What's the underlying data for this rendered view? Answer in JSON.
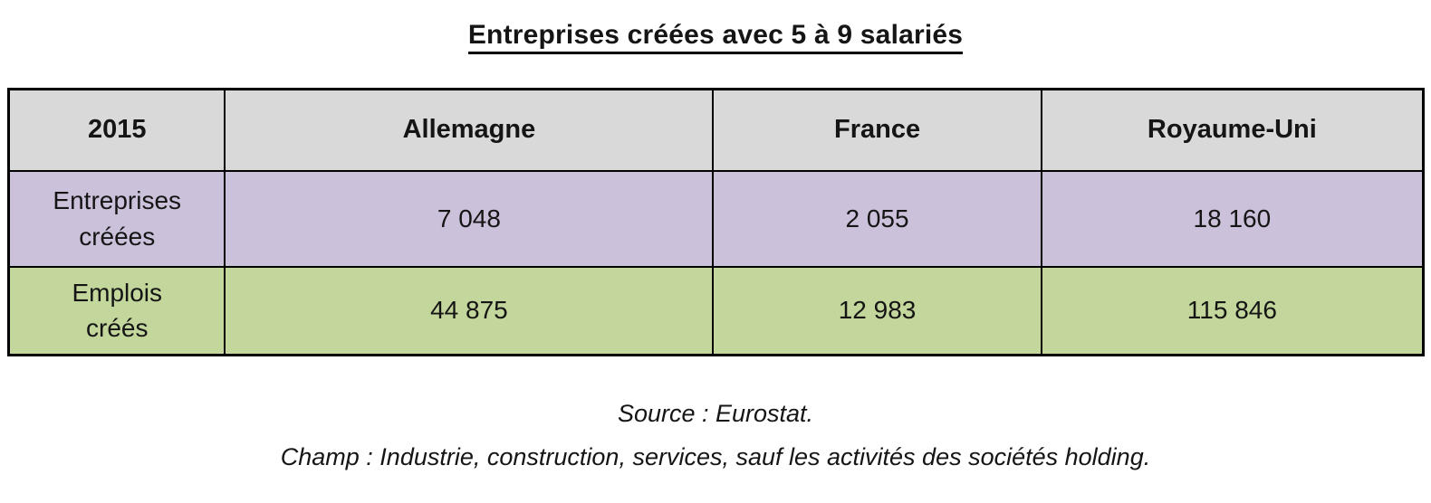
{
  "title": "Entreprises créées avec 5 à 9 salariés",
  "chart_data": {
    "type": "table",
    "title": "Entreprises créées avec 5 à 9 salariés",
    "corner_label": "2015",
    "columns": [
      "Allemagne",
      "France",
      "Royaume-Uni"
    ],
    "rows": [
      {
        "label": "Entreprises créées",
        "values": [
          "7 048",
          "2 055",
          "18 160"
        ],
        "values_numeric": [
          7048,
          2055,
          18160
        ]
      },
      {
        "label": "Emplois créés",
        "values": [
          "44 875",
          "12 983",
          "115 846"
        ],
        "values_numeric": [
          44875,
          12983,
          115846
        ]
      }
    ],
    "notes": [
      "Source : Eurostat.",
      "Champ : Industrie, construction, services, sauf les activités des sociétés holding."
    ]
  },
  "footer": {
    "source": "Source : Eurostat.",
    "champ": "Champ : Industrie, construction, services, sauf les activités des sociétés holding."
  },
  "colors": {
    "header_bg": "#d9d9d9",
    "row_entreprises_bg": "#ccc1da",
    "row_emplois_bg": "#c3d69b",
    "border": "#000000",
    "text": "#151515",
    "background": "#ffffff"
  }
}
